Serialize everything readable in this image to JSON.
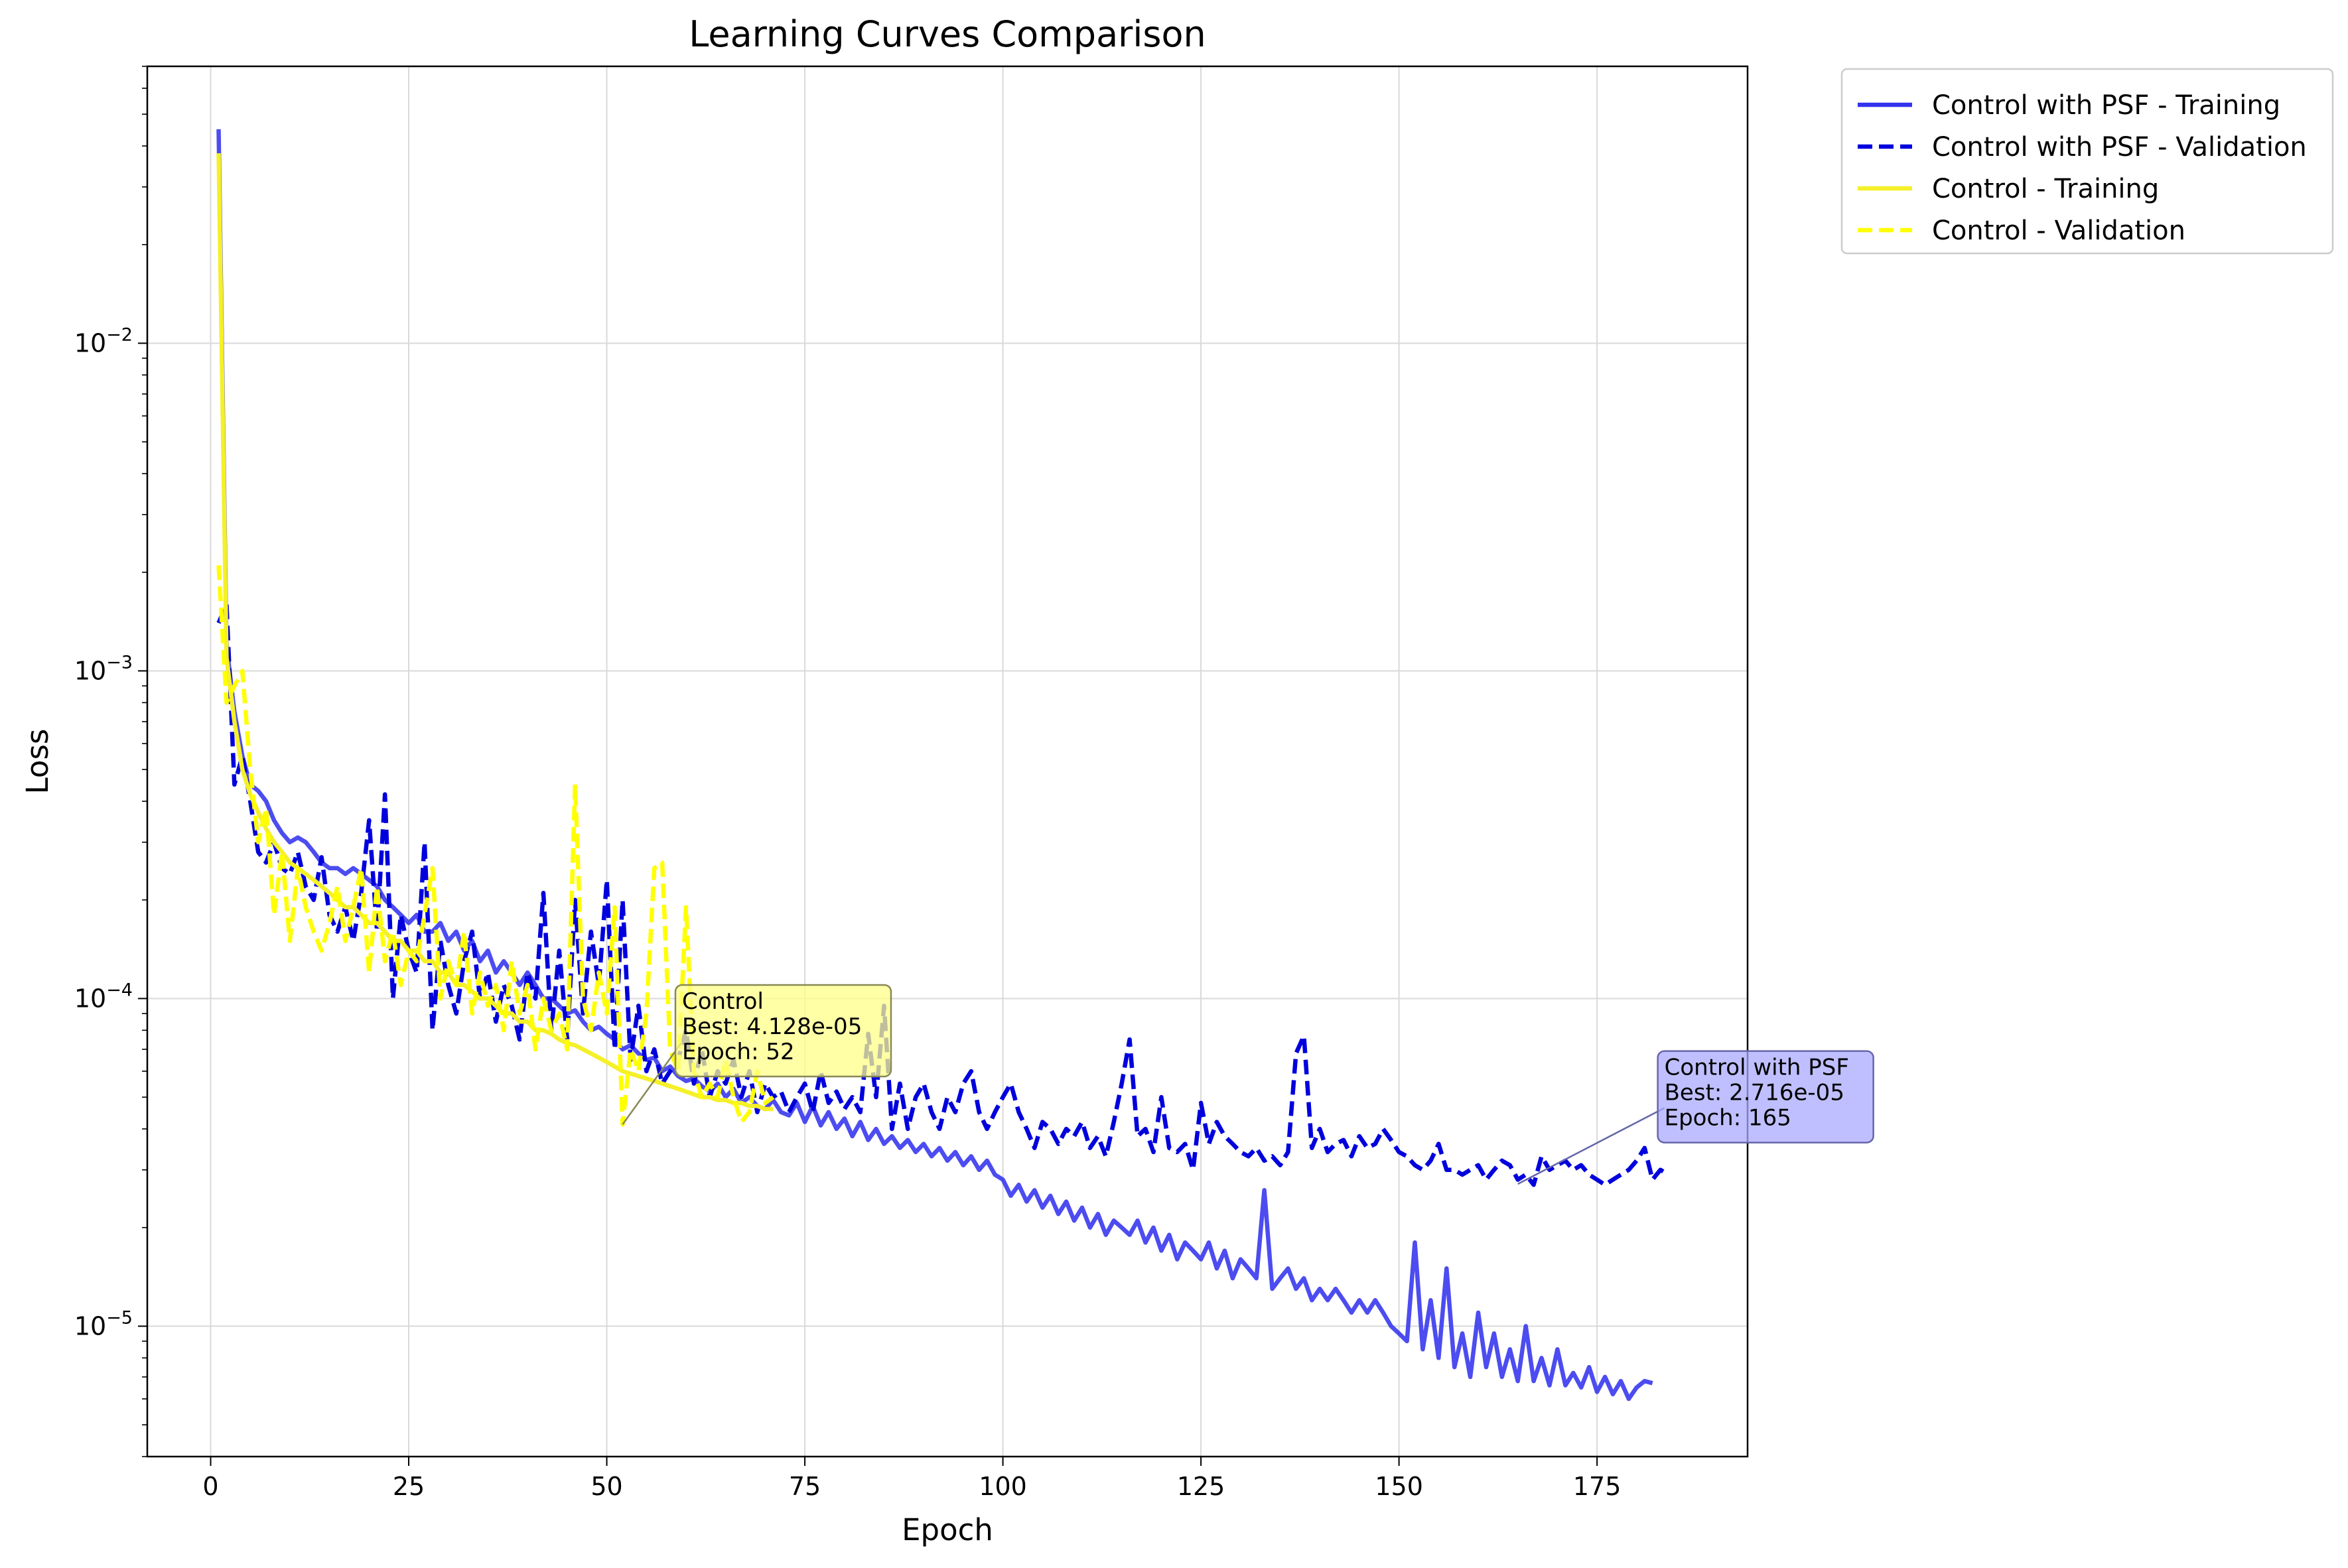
{
  "chart_data": {
    "type": "line",
    "title": "Learning Curves Comparison",
    "xlabel": "Epoch",
    "ylabel": "Loss",
    "xlim": [
      -8,
      194
    ],
    "ylim": [
      4e-06,
      0.07
    ],
    "yscale": "log",
    "grid": true,
    "legend_position": "outside top-right",
    "x_ticks": [
      0,
      25,
      50,
      75,
      100,
      125,
      150,
      175
    ],
    "y_ticks": [
      {
        "value": 1e-05,
        "label": "10",
        "exp": "−5"
      },
      {
        "value": 0.0001,
        "label": "10",
        "exp": "−4"
      },
      {
        "value": 0.001,
        "label": "10",
        "exp": "−3"
      },
      {
        "value": 0.01,
        "label": "10",
        "exp": "−2"
      }
    ],
    "series": [
      {
        "name": "Control with PSF - Training",
        "color": "#3333ee",
        "style": "solid",
        "x_start": 1,
        "values": [
          0.045,
          0.0012,
          0.00075,
          0.00055,
          0.00045,
          0.00043,
          0.0004,
          0.00035,
          0.00032,
          0.0003,
          0.00031,
          0.0003,
          0.00028,
          0.00026,
          0.00025,
          0.00025,
          0.00024,
          0.00025,
          0.00024,
          0.00023,
          0.00022,
          0.0002,
          0.00019,
          0.00018,
          0.00017,
          0.00018,
          0.00016,
          0.00016,
          0.00017,
          0.00015,
          0.00016,
          0.00014,
          0.00015,
          0.00013,
          0.00014,
          0.00012,
          0.00013,
          0.00012,
          0.00011,
          0.00012,
          0.00011,
          0.0001,
          0.0001,
          9.5e-05,
          9e-05,
          9.2e-05,
          8.5e-05,
          8e-05,
          8.2e-05,
          7.8e-05,
          7.5e-05,
          7e-05,
          7.2e-05,
          6.8e-05,
          6.5e-05,
          6.6e-05,
          6e-05,
          6.2e-05,
          5.8e-05,
          5.6e-05,
          5.7e-05,
          5.4e-05,
          5.2e-05,
          5.5e-05,
          5e-05,
          5.3e-05,
          4.8e-05,
          5e-05,
          4.7e-05,
          4.6e-05,
          4.9e-05,
          4.5e-05,
          4.4e-05,
          4.8e-05,
          4.2e-05,
          4.7e-05,
          4.1e-05,
          4.5e-05,
          4e-05,
          4.3e-05,
          3.8e-05,
          4.2e-05,
          3.7e-05,
          4e-05,
          3.6e-05,
          3.8e-05,
          3.5e-05,
          3.7e-05,
          3.4e-05,
          3.6e-05,
          3.3e-05,
          3.5e-05,
          3.2e-05,
          3.4e-05,
          3.1e-05,
          3.3e-05,
          3e-05,
          3.2e-05,
          2.9e-05,
          2.8e-05,
          2.5e-05,
          2.7e-05,
          2.4e-05,
          2.6e-05,
          2.3e-05,
          2.5e-05,
          2.2e-05,
          2.4e-05,
          2.1e-05,
          2.3e-05,
          2e-05,
          2.2e-05,
          1.9e-05,
          2.1e-05,
          2e-05,
          1.9e-05,
          2.1e-05,
          1.8e-05,
          2e-05,
          1.7e-05,
          1.9e-05,
          1.6e-05,
          1.8e-05,
          1.7e-05,
          1.6e-05,
          1.8e-05,
          1.5e-05,
          1.7e-05,
          1.4e-05,
          1.6e-05,
          1.5e-05,
          1.4e-05,
          2.6e-05,
          1.3e-05,
          1.4e-05,
          1.5e-05,
          1.3e-05,
          1.4e-05,
          1.2e-05,
          1.3e-05,
          1.2e-05,
          1.3e-05,
          1.2e-05,
          1.1e-05,
          1.2e-05,
          1.1e-05,
          1.2e-05,
          1.1e-05,
          1e-05,
          9.5e-06,
          9e-06,
          1.8e-05,
          8.5e-06,
          1.2e-05,
          8e-06,
          1.5e-05,
          7.5e-06,
          9.5e-06,
          7e-06,
          1.1e-05,
          7.5e-06,
          9.5e-06,
          7e-06,
          8.5e-06,
          6.8e-06,
          1e-05,
          6.8e-06,
          8e-06,
          6.6e-06,
          8.5e-06,
          6.6e-06,
          7.2e-06,
          6.5e-06,
          7.5e-06,
          6.3e-06,
          7e-06,
          6.2e-06,
          6.8e-06,
          6e-06,
          6.5e-06,
          6.8e-06,
          6.7e-06
        ]
      },
      {
        "name": "Control with PSF - Validation",
        "color": "#0000dd",
        "style": "dashed",
        "x_start": 1,
        "values": [
          0.0014,
          0.0016,
          0.00045,
          0.00055,
          0.0004,
          0.00028,
          0.00026,
          0.0003,
          0.00025,
          0.00024,
          0.00028,
          0.00022,
          0.0002,
          0.00027,
          0.00018,
          0.00016,
          0.00019,
          0.00015,
          0.00021,
          0.00035,
          0.00016,
          0.00042,
          0.0001,
          0.00018,
          0.00014,
          0.00012,
          0.0003,
          8e-05,
          0.00015,
          0.00011,
          9e-05,
          0.00013,
          0.00016,
          0.0001,
          0.00012,
          8.5e-05,
          0.00011,
          9.5e-05,
          7.5e-05,
          0.00012,
          0.0001,
          0.00021,
          8e-05,
          0.00014,
          7.5e-05,
          0.0002,
          9e-05,
          0.00016,
          0.00011,
          0.00023,
          7e-05,
          0.0002,
          6.5e-05,
          9.5e-05,
          6e-05,
          7e-05,
          5.5e-05,
          6e-05,
          6.5e-05,
          8e-05,
          5.5e-05,
          7e-05,
          5e-05,
          6e-05,
          5.5e-05,
          6.5e-05,
          5e-05,
          6e-05,
          4.5e-05,
          5.5e-05,
          5e-05,
          5.2e-05,
          4.5e-05,
          5e-05,
          5.5e-05,
          4.5e-05,
          6e-05,
          4.8e-05,
          5.2e-05,
          4.6e-05,
          5e-05,
          4.5e-05,
          7.8e-05,
          5e-05,
          9.5e-05,
          4e-05,
          5.5e-05,
          4e-05,
          5e-05,
          5.5e-05,
          4.5e-05,
          4e-05,
          5e-05,
          4.5e-05,
          5.5e-05,
          6e-05,
          4.5e-05,
          4e-05,
          4.5e-05,
          5e-05,
          5.5e-05,
          4.5e-05,
          4e-05,
          3.5e-05,
          4.2e-05,
          4e-05,
          3.6e-05,
          4e-05,
          3.8e-05,
          4.2e-05,
          3.5e-05,
          3.8e-05,
          3.3e-05,
          4.2e-05,
          5.5e-05,
          7.5e-05,
          3.8e-05,
          4e-05,
          3.4e-05,
          5e-05,
          3.5e-05,
          3.4e-05,
          3.6e-05,
          3e-05,
          4.8e-05,
          3.6e-05,
          4.2e-05,
          3.8e-05,
          3.6e-05,
          3.4e-05,
          3.3e-05,
          3.5e-05,
          3.2e-05,
          3.3e-05,
          3.1e-05,
          3.4e-05,
          6.8e-05,
          7.7e-05,
          3.5e-05,
          4e-05,
          3.4e-05,
          3.6e-05,
          3.7e-05,
          3.3e-05,
          3.8e-05,
          3.5e-05,
          3.6e-05,
          4e-05,
          3.7e-05,
          3.4e-05,
          3.3e-05,
          3.1e-05,
          3e-05,
          3.2e-05,
          3.6e-05,
          3e-05,
          3e-05,
          2.9e-05,
          3e-05,
          3.1e-05,
          2.8e-05,
          3e-05,
          3.2e-05,
          3.1e-05,
          2.8e-05,
          2.9e-05,
          2.7e-05,
          3.3e-05,
          3e-05,
          3.1e-05,
          3.2e-05,
          3e-05,
          3.1e-05,
          2.9e-05,
          2.8e-05,
          2.7e-05,
          2.8e-05,
          2.9e-05,
          3e-05,
          3.2e-05,
          3.5e-05,
          2.8e-05,
          3e-05,
          2.9e-05
        ]
      },
      {
        "name": "Control - Training",
        "color": "#f5f028",
        "style": "solid",
        "x_start": 1,
        "values": [
          0.038,
          0.0011,
          0.0007,
          0.0005,
          0.00042,
          0.00037,
          0.00033,
          0.0003,
          0.00028,
          0.00026,
          0.00025,
          0.00024,
          0.00023,
          0.00022,
          0.00021,
          0.0002,
          0.00019,
          0.00019,
          0.00018,
          0.00017,
          0.00017,
          0.00016,
          0.00015,
          0.00015,
          0.00014,
          0.00014,
          0.00013,
          0.00013,
          0.00012,
          0.00012,
          0.00011,
          0.00011,
          0.000105,
          0.0001,
          0.0001,
          9.5e-05,
          9e-05,
          9e-05,
          8.5e-05,
          8.5e-05,
          8e-05,
          8e-05,
          7.8e-05,
          7.5e-05,
          7.3e-05,
          7.2e-05,
          7e-05,
          6.8e-05,
          6.6e-05,
          6.4e-05,
          6.2e-05,
          6e-05,
          5.9e-05,
          5.8e-05,
          5.7e-05,
          5.6e-05,
          5.5e-05,
          5.4e-05,
          5.3e-05,
          5.2e-05,
          5.1e-05,
          5e-05,
          5e-05,
          4.9e-05,
          4.9e-05,
          4.8e-05,
          4.8e-05,
          4.7e-05,
          4.7e-05,
          4.6e-05,
          4.6e-05
        ]
      },
      {
        "name": "Control - Validation",
        "color": "#ffff00",
        "style": "dashed",
        "x_start": 1,
        "values": [
          0.0021,
          0.0008,
          0.0009,
          0.001,
          0.0005,
          0.0003,
          0.00038,
          0.00018,
          0.00028,
          0.00015,
          0.00025,
          0.00019,
          0.00016,
          0.00014,
          0.00017,
          0.00022,
          0.00015,
          0.00019,
          0.00025,
          0.00012,
          0.00022,
          0.00013,
          0.00016,
          0.00011,
          0.00014,
          0.00013,
          0.00018,
          0.00025,
          0.0001,
          0.00013,
          0.00011,
          0.00016,
          9e-05,
          0.00012,
          9.5e-05,
          0.00011,
          8e-05,
          0.00013,
          9e-05,
          0.00011,
          7e-05,
          0.0001,
          8e-05,
          9e-05,
          7e-05,
          0.00045,
          0.0001,
          8e-05,
          0.00012,
          9e-05,
          0.00019,
          4.128e-05,
          7e-05,
          6e-05,
          9e-05,
          0.00025,
          0.00026,
          7e-05,
          6e-05,
          0.00019,
          6e-05,
          5e-05,
          5.5e-05,
          5e-05,
          6.5e-05,
          5e-05,
          4.2e-05,
          4.5e-05,
          6e-05,
          4.8e-05,
          5e-05
        ]
      }
    ],
    "annotations": [
      {
        "lines": [
          "Control",
          "Best: 4.128e-05",
          "Epoch: 52"
        ],
        "point": {
          "x": 52,
          "y": 4.128e-05
        },
        "box_anchor": {
          "x": 59.5,
          "y": 0.000105
        },
        "fill": "#ffff88",
        "border": "#888855"
      },
      {
        "lines": [
          "Control with PSF",
          "Best: 2.716e-05",
          "Epoch: 165"
        ],
        "point": {
          "x": 165,
          "y": 2.716e-05
        },
        "box_anchor": {
          "x": 183.5,
          "y": 6.6e-05
        },
        "fill": "#aaaaff",
        "border": "#6666aa"
      }
    ]
  }
}
